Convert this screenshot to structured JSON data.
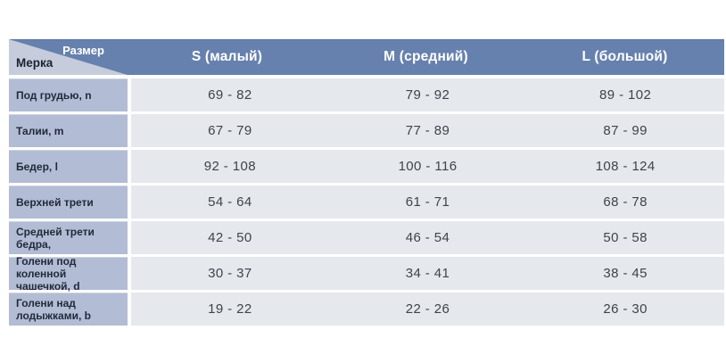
{
  "table": {
    "corner": {
      "top_label": "Размер",
      "bottom_label": "Мерка"
    },
    "columns": [
      "S (малый)",
      "M (средний)",
      "L (большой)"
    ],
    "rows": [
      {
        "label": "Под грудью, n",
        "values": [
          "69 - 82",
          "79 - 92",
          "89 - 102"
        ]
      },
      {
        "label": "Талии, m",
        "values": [
          "67 - 79",
          "77 - 89",
          "87 - 99"
        ]
      },
      {
        "label": "Бедер, l",
        "values": [
          "92 - 108",
          "100 - 116",
          "108 - 124"
        ]
      },
      {
        "label": "Верхней трети",
        "values": [
          "54 - 64",
          "61 - 71",
          "68 - 78"
        ]
      },
      {
        "label": "Средней трети бедра,",
        "values": [
          "42 - 50",
          "46 - 54",
          "50 - 58"
        ]
      },
      {
        "label": "Голени под коленной чашечкой, d",
        "values": [
          "30 - 37",
          "34 - 41",
          "38 - 45"
        ]
      },
      {
        "label": "Голени над лодыжками, b",
        "values": [
          "19 - 22",
          "22 - 26",
          "26 - 30"
        ]
      }
    ],
    "colors": {
      "header_bg": "#6781ae",
      "corner_light": "#c6ccdc",
      "label_bg": "#b2bcd5",
      "cell_bg": "#e5e8ed",
      "header_text": "#ffffff",
      "label_text": "#222a3a",
      "value_text": "#3f444b"
    }
  }
}
